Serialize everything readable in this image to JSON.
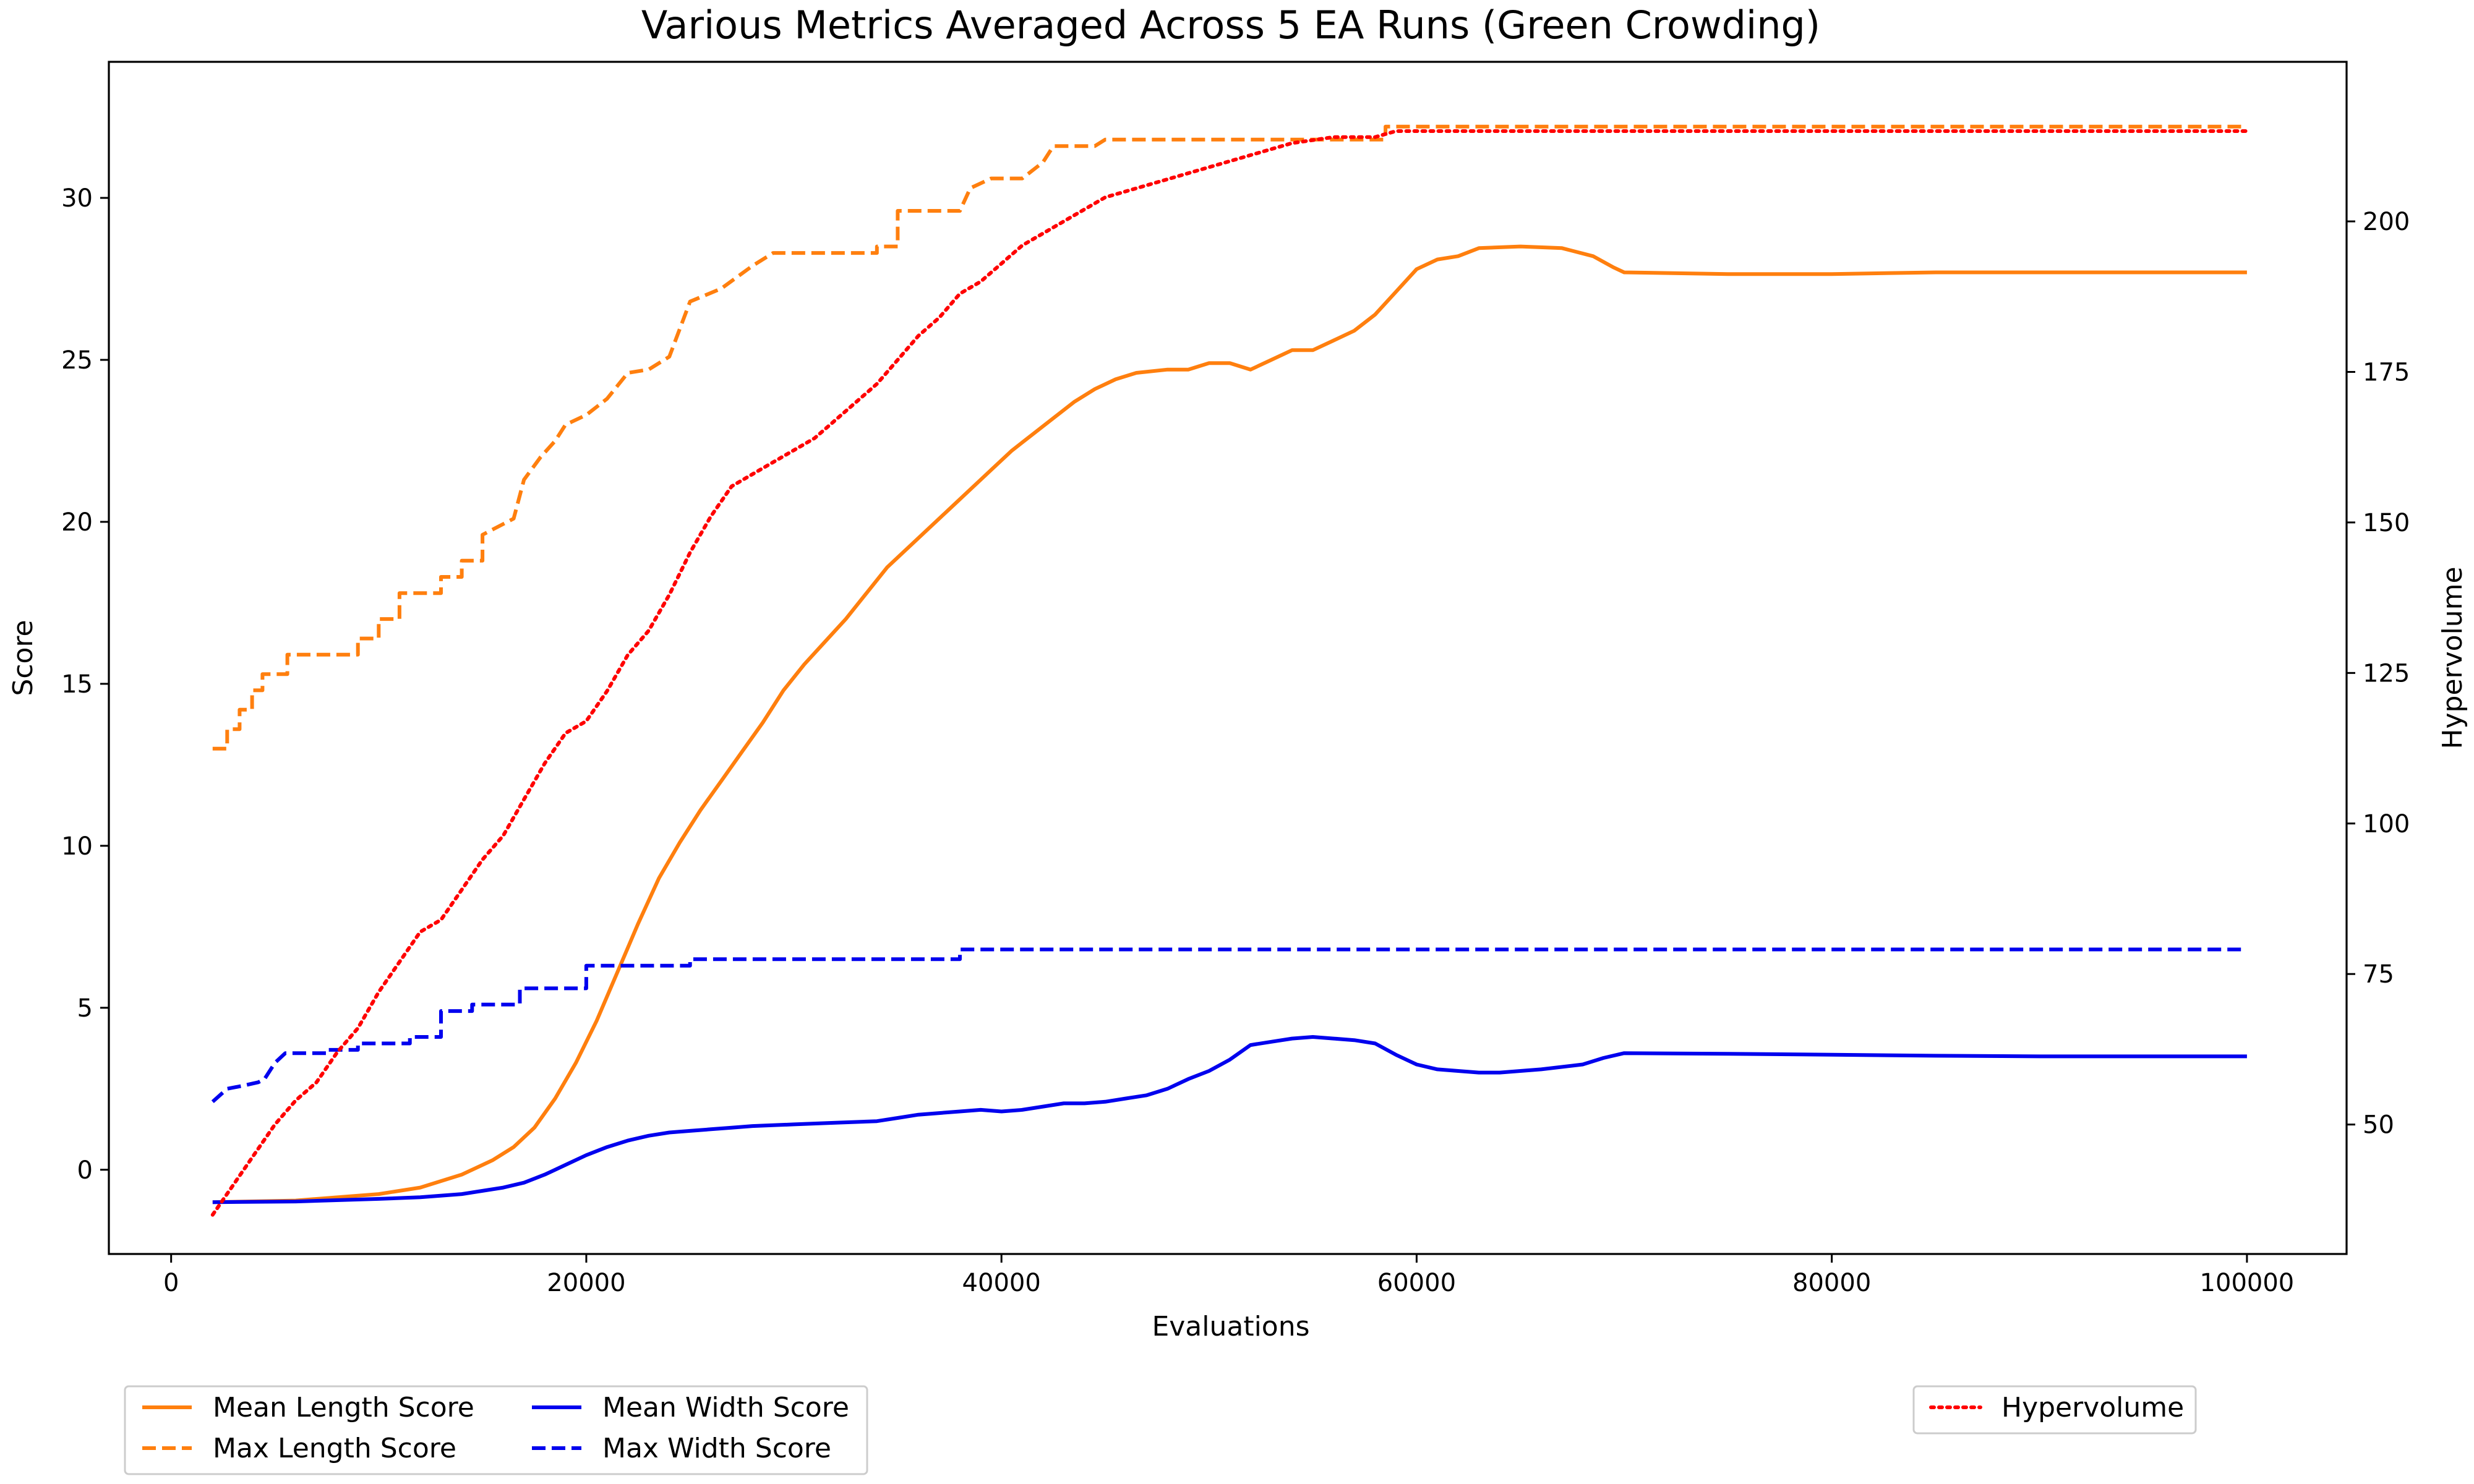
{
  "chart_data": {
    "type": "line",
    "title": "Various Metrics Averaged Across 5 EA Runs (Green Crowding)",
    "xlabel": "Evaluations",
    "ylabel": "Score",
    "y2label": "Hypervolume",
    "xlim": [
      -3000,
      104800
    ],
    "ylim": [
      -2.6,
      34.2
    ],
    "y2lim": [
      28.5,
      226.5
    ],
    "xticks": [
      0,
      20000,
      40000,
      60000,
      80000,
      100000
    ],
    "yticks": [
      0,
      5,
      10,
      15,
      20,
      25,
      30
    ],
    "y2ticks": [
      50,
      75,
      100,
      125,
      150,
      175,
      200
    ],
    "grid": false,
    "legend_left_placement": "below-left",
    "legend_right_placement": "below-right",
    "series": [
      {
        "name": "Mean Length Score",
        "axis": "left",
        "color": "#ff7f0e",
        "style": "solid",
        "points": [
          [
            2000,
            -1.0
          ],
          [
            6000,
            -0.95
          ],
          [
            10000,
            -0.75
          ],
          [
            12000,
            -0.55
          ],
          [
            14000,
            -0.15
          ],
          [
            15500,
            0.3
          ],
          [
            16500,
            0.7
          ],
          [
            17500,
            1.3
          ],
          [
            18500,
            2.2
          ],
          [
            19500,
            3.3
          ],
          [
            20500,
            4.6
          ],
          [
            21500,
            6.1
          ],
          [
            22500,
            7.6
          ],
          [
            23500,
            9.0
          ],
          [
            24500,
            10.1
          ],
          [
            25500,
            11.1
          ],
          [
            26500,
            12.0
          ],
          [
            27500,
            12.9
          ],
          [
            28500,
            13.8
          ],
          [
            29500,
            14.8
          ],
          [
            30500,
            15.6
          ],
          [
            31500,
            16.3
          ],
          [
            32500,
            17.0
          ],
          [
            33500,
            17.8
          ],
          [
            34500,
            18.6
          ],
          [
            35500,
            19.2
          ],
          [
            36500,
            19.8
          ],
          [
            37500,
            20.4
          ],
          [
            38500,
            21.0
          ],
          [
            39500,
            21.6
          ],
          [
            40500,
            22.2
          ],
          [
            41500,
            22.7
          ],
          [
            42500,
            23.2
          ],
          [
            43500,
            23.7
          ],
          [
            44500,
            24.1
          ],
          [
            45500,
            24.4
          ],
          [
            46500,
            24.6
          ],
          [
            48000,
            24.7
          ],
          [
            49000,
            24.7
          ],
          [
            50000,
            24.9
          ],
          [
            51000,
            24.9
          ],
          [
            52000,
            24.7
          ],
          [
            53000,
            25.0
          ],
          [
            54000,
            25.3
          ],
          [
            55000,
            25.3
          ],
          [
            56000,
            25.6
          ],
          [
            57000,
            25.9
          ],
          [
            58000,
            26.4
          ],
          [
            59000,
            27.1
          ],
          [
            60000,
            27.8
          ],
          [
            61000,
            28.1
          ],
          [
            62000,
            28.2
          ],
          [
            63000,
            28.45
          ],
          [
            65000,
            28.5
          ],
          [
            67000,
            28.45
          ],
          [
            68500,
            28.2
          ],
          [
            69500,
            27.85
          ],
          [
            70000,
            27.7
          ],
          [
            75000,
            27.65
          ],
          [
            80000,
            27.65
          ],
          [
            85000,
            27.7
          ],
          [
            90000,
            27.7
          ],
          [
            100000,
            27.7
          ]
        ]
      },
      {
        "name": "Max Length Score",
        "axis": "left",
        "color": "#ff7f0e",
        "style": "dashed",
        "points": [
          [
            2000,
            13.0
          ],
          [
            2700,
            13.0
          ],
          [
            2700,
            13.6
          ],
          [
            3300,
            13.6
          ],
          [
            3300,
            14.2
          ],
          [
            3900,
            14.2
          ],
          [
            3900,
            14.8
          ],
          [
            4400,
            14.8
          ],
          [
            4400,
            15.3
          ],
          [
            5600,
            15.3
          ],
          [
            5600,
            15.9
          ],
          [
            9000,
            15.9
          ],
          [
            9000,
            16.4
          ],
          [
            10000,
            16.4
          ],
          [
            10000,
            17.0
          ],
          [
            11000,
            17.0
          ],
          [
            11000,
            17.8
          ],
          [
            13000,
            17.8
          ],
          [
            13000,
            18.3
          ],
          [
            14000,
            18.3
          ],
          [
            14000,
            18.8
          ],
          [
            15000,
            18.8
          ],
          [
            15000,
            19.6
          ],
          [
            16500,
            20.1
          ],
          [
            17000,
            21.3
          ],
          [
            17800,
            22.0
          ],
          [
            18500,
            22.5
          ],
          [
            19000,
            23.0
          ],
          [
            20000,
            23.3
          ],
          [
            21000,
            23.8
          ],
          [
            22000,
            24.6
          ],
          [
            23000,
            24.7
          ],
          [
            24000,
            25.1
          ],
          [
            25000,
            26.8
          ],
          [
            26500,
            27.2
          ],
          [
            28000,
            27.9
          ],
          [
            29000,
            28.3
          ],
          [
            34000,
            28.3
          ],
          [
            34000,
            28.5
          ],
          [
            35000,
            28.5
          ],
          [
            35000,
            29.6
          ],
          [
            38000,
            29.6
          ],
          [
            38500,
            30.3
          ],
          [
            39500,
            30.6
          ],
          [
            41000,
            30.6
          ],
          [
            42000,
            31.1
          ],
          [
            42500,
            31.6
          ],
          [
            44500,
            31.6
          ],
          [
            45000,
            31.8
          ],
          [
            58500,
            31.8
          ],
          [
            58500,
            32.2
          ],
          [
            100000,
            32.2
          ]
        ]
      },
      {
        "name": "Mean Width Score",
        "axis": "left",
        "color": "#0000ee",
        "style": "solid",
        "points": [
          [
            2000,
            -1.0
          ],
          [
            6000,
            -0.98
          ],
          [
            10000,
            -0.9
          ],
          [
            12000,
            -0.85
          ],
          [
            14000,
            -0.75
          ],
          [
            16000,
            -0.55
          ],
          [
            17000,
            -0.4
          ],
          [
            18000,
            -0.15
          ],
          [
            19000,
            0.15
          ],
          [
            20000,
            0.45
          ],
          [
            21000,
            0.7
          ],
          [
            22000,
            0.9
          ],
          [
            23000,
            1.05
          ],
          [
            24000,
            1.15
          ],
          [
            25000,
            1.2
          ],
          [
            26000,
            1.25
          ],
          [
            27000,
            1.3
          ],
          [
            28000,
            1.35
          ],
          [
            30000,
            1.4
          ],
          [
            32000,
            1.45
          ],
          [
            34000,
            1.5
          ],
          [
            35000,
            1.6
          ],
          [
            36000,
            1.7
          ],
          [
            37000,
            1.75
          ],
          [
            38000,
            1.8
          ],
          [
            39000,
            1.85
          ],
          [
            40000,
            1.8
          ],
          [
            41000,
            1.85
          ],
          [
            42000,
            1.95
          ],
          [
            43000,
            2.05
          ],
          [
            44000,
            2.05
          ],
          [
            45000,
            2.1
          ],
          [
            46000,
            2.2
          ],
          [
            47000,
            2.3
          ],
          [
            48000,
            2.5
          ],
          [
            49000,
            2.8
          ],
          [
            50000,
            3.05
          ],
          [
            51000,
            3.4
          ],
          [
            52000,
            3.85
          ],
          [
            53000,
            3.95
          ],
          [
            54000,
            4.05
          ],
          [
            55000,
            4.1
          ],
          [
            56000,
            4.05
          ],
          [
            57000,
            4.0
          ],
          [
            58000,
            3.9
          ],
          [
            59000,
            3.55
          ],
          [
            60000,
            3.25
          ],
          [
            61000,
            3.1
          ],
          [
            62000,
            3.05
          ],
          [
            63000,
            3.0
          ],
          [
            64000,
            3.0
          ],
          [
            66000,
            3.1
          ],
          [
            68000,
            3.25
          ],
          [
            69000,
            3.45
          ],
          [
            70000,
            3.6
          ],
          [
            75000,
            3.58
          ],
          [
            80000,
            3.55
          ],
          [
            85000,
            3.52
          ],
          [
            90000,
            3.5
          ],
          [
            100000,
            3.5
          ]
        ]
      },
      {
        "name": "Max Width Score",
        "axis": "left",
        "color": "#0000ee",
        "style": "dashed",
        "points": [
          [
            2000,
            2.1
          ],
          [
            2700,
            2.5
          ],
          [
            3500,
            2.6
          ],
          [
            4200,
            2.7
          ],
          [
            4500,
            2.8
          ],
          [
            5000,
            3.3
          ],
          [
            5500,
            3.6
          ],
          [
            7500,
            3.6
          ],
          [
            7500,
            3.7
          ],
          [
            9000,
            3.7
          ],
          [
            9000,
            3.9
          ],
          [
            11500,
            3.9
          ],
          [
            11500,
            4.1
          ],
          [
            13000,
            4.1
          ],
          [
            13000,
            4.9
          ],
          [
            14500,
            4.9
          ],
          [
            14500,
            5.1
          ],
          [
            16800,
            5.1
          ],
          [
            16800,
            5.6
          ],
          [
            20000,
            5.6
          ],
          [
            20000,
            6.3
          ],
          [
            25000,
            6.3
          ],
          [
            25000,
            6.5
          ],
          [
            38000,
            6.5
          ],
          [
            38000,
            6.8
          ],
          [
            100000,
            6.8
          ]
        ]
      },
      {
        "name": "Hypervolume",
        "axis": "right",
        "color": "#ff0000",
        "style": "dotted",
        "points": [
          [
            2000,
            35
          ],
          [
            3000,
            40
          ],
          [
            4000,
            45
          ],
          [
            5000,
            50
          ],
          [
            6000,
            54
          ],
          [
            7000,
            57
          ],
          [
            8000,
            62
          ],
          [
            9000,
            66
          ],
          [
            10000,
            72
          ],
          [
            11000,
            77
          ],
          [
            12000,
            82
          ],
          [
            13000,
            84
          ],
          [
            14000,
            89
          ],
          [
            15000,
            94
          ],
          [
            16000,
            98
          ],
          [
            17000,
            104
          ],
          [
            18000,
            110
          ],
          [
            19000,
            115
          ],
          [
            20000,
            117
          ],
          [
            21000,
            122
          ],
          [
            22000,
            128
          ],
          [
            23000,
            132
          ],
          [
            24000,
            138
          ],
          [
            25000,
            145
          ],
          [
            26000,
            151
          ],
          [
            27000,
            156
          ],
          [
            28000,
            158
          ],
          [
            29000,
            160
          ],
          [
            30000,
            162
          ],
          [
            31000,
            164
          ],
          [
            32000,
            167
          ],
          [
            33000,
            170
          ],
          [
            34000,
            173
          ],
          [
            35000,
            177
          ],
          [
            36000,
            181
          ],
          [
            37000,
            184
          ],
          [
            38000,
            188
          ],
          [
            39000,
            190
          ],
          [
            40000,
            193
          ],
          [
            41000,
            196
          ],
          [
            42000,
            198
          ],
          [
            43000,
            200
          ],
          [
            44000,
            202
          ],
          [
            45000,
            204
          ],
          [
            46000,
            205
          ],
          [
            47000,
            206
          ],
          [
            48000,
            207
          ],
          [
            49000,
            208
          ],
          [
            50000,
            209
          ],
          [
            51000,
            210
          ],
          [
            52000,
            211
          ],
          [
            53000,
            212
          ],
          [
            54000,
            213
          ],
          [
            56000,
            214
          ],
          [
            58000,
            214
          ],
          [
            59000,
            215
          ],
          [
            100000,
            215
          ]
        ]
      }
    ]
  }
}
